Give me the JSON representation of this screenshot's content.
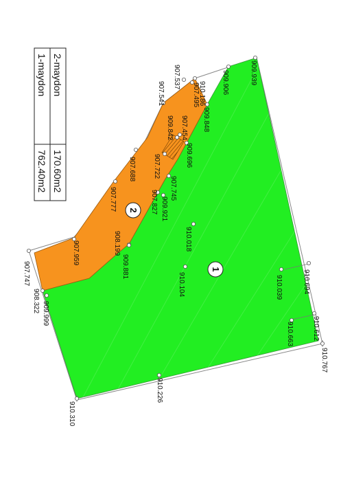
{
  "legend": {
    "rows": [
      {
        "name": "1-maydon",
        "area": "762.40m2"
      },
      {
        "name": "2-maydon",
        "area": "170.60m2"
      }
    ]
  },
  "zones": [
    {
      "number": "1",
      "color": "#22ee22"
    },
    {
      "number": "2",
      "color": "#f7931e"
    }
  ],
  "elevations": [
    "909.939",
    "909.906",
    "910.186",
    "907.495",
    "907.537",
    "907.541",
    "909.848",
    "907.454",
    "909.842",
    "909.696",
    "907.688",
    "907.722",
    "907.745",
    "907.777",
    "907.827",
    "909.921",
    "910.018",
    "908.199",
    "907.959",
    "909.881",
    "910.104",
    "910.039",
    "910.694",
    "907.747",
    "908.322",
    "909.999",
    "910.663",
    "910.612",
    "910.767",
    "910.226",
    "910.310"
  ]
}
